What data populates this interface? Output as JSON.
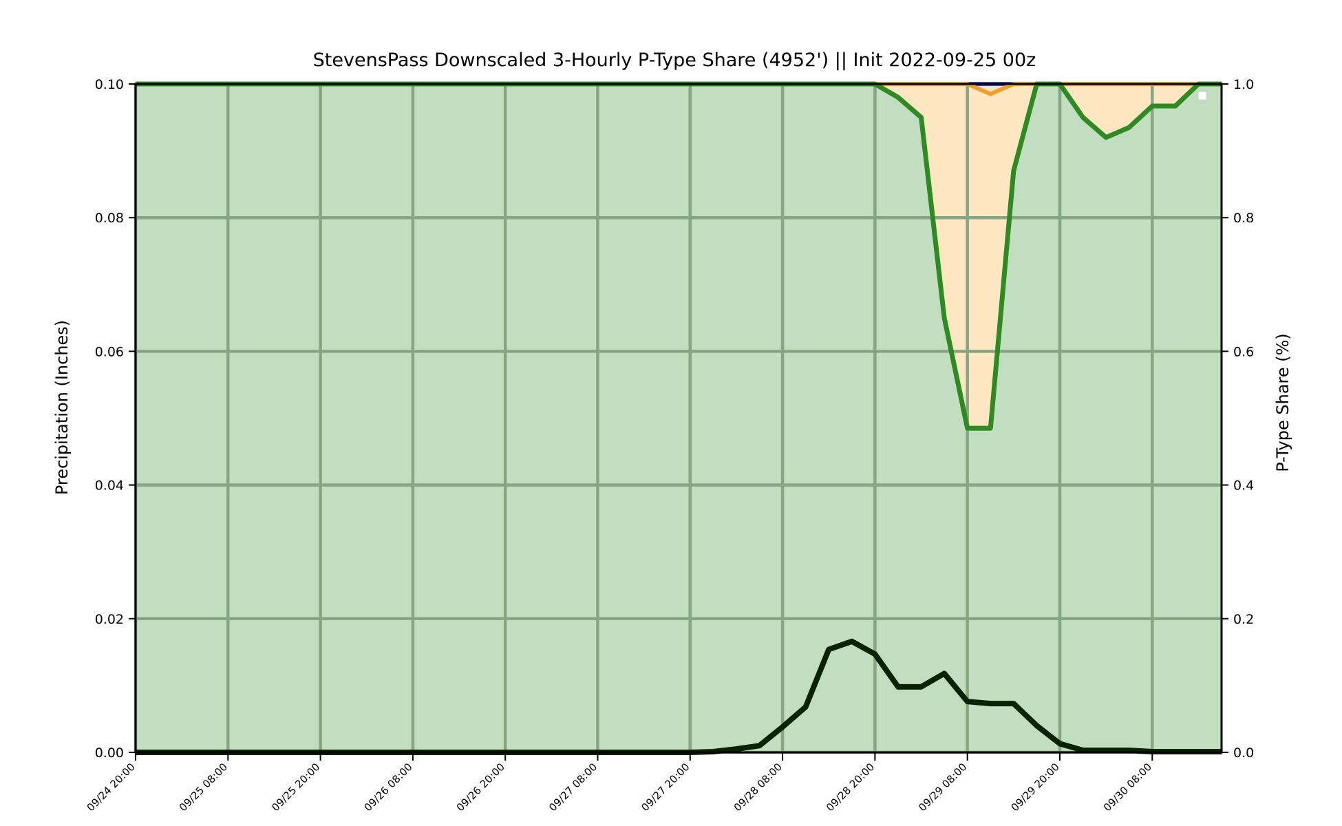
{
  "chart_data": {
    "type": "area",
    "title": "StevensPass Downscaled 3-Hourly P-Type Share (4952') || Init 2022-09-25 00z",
    "ylabel_left": "Precipitation (Inches)",
    "ylabel_right": "P-Type Share (%)",
    "xlabel": "",
    "ylim_left": [
      0,
      0.1
    ],
    "ylim_right": [
      0,
      1.0
    ],
    "grid": true,
    "x_tick_labels": [
      "09/24 20:00",
      "09/25 08:00",
      "09/25 20:00",
      "09/26 08:00",
      "09/26 20:00",
      "09/27 08:00",
      "09/27 20:00",
      "09/28 08:00",
      "09/28 20:00",
      "09/29 08:00",
      "09/29 20:00",
      "09/30 08:00"
    ],
    "y_left_ticks": [
      "0.00",
      "0.02",
      "0.04",
      "0.06",
      "0.08",
      "0.10"
    ],
    "y_right_ticks": [
      "0.0",
      "0.2",
      "0.4",
      "0.6",
      "0.8",
      "1.0"
    ],
    "x_hours_from_start": [
      0,
      3,
      6,
      9,
      12,
      15,
      18,
      21,
      24,
      27,
      30,
      33,
      36,
      39,
      42,
      45,
      48,
      51,
      54,
      57,
      60,
      63,
      66,
      69,
      72,
      75,
      78,
      81,
      84,
      87,
      90,
      93,
      96,
      99,
      102,
      105,
      108,
      111,
      114,
      117,
      120,
      123,
      126,
      129,
      132,
      135,
      138,
      141
    ],
    "series": [
      {
        "kind": "snow_share",
        "color": "#2e8b22",
        "fill": "#c1dfc0",
        "axis": "right",
        "values": [
          1,
          1,
          1,
          1,
          1,
          1,
          1,
          1,
          1,
          1,
          1,
          1,
          1,
          1,
          1,
          1,
          1,
          1,
          1,
          1,
          1,
          1,
          1,
          1,
          1,
          1,
          1,
          1,
          1,
          1,
          1,
          1,
          1,
          0.98,
          0.95,
          0.65,
          0.485,
          0.485,
          0.87,
          1,
          1,
          0.95,
          0.92,
          0.935,
          0.967,
          0.967,
          1,
          1
        ]
      },
      {
        "kind": "mixed_share",
        "color": "#f0a02a",
        "fill": "#fde7c2",
        "axis": "right",
        "values": [
          1,
          1,
          1,
          1,
          1,
          1,
          1,
          1,
          1,
          1,
          1,
          1,
          1,
          1,
          1,
          1,
          1,
          1,
          1,
          1,
          1,
          1,
          1,
          1,
          1,
          1,
          1,
          1,
          1,
          1,
          1,
          1,
          1,
          1,
          1,
          1,
          1,
          0.985,
          1,
          1,
          1,
          1,
          1,
          1,
          1,
          1,
          1,
          1
        ]
      },
      {
        "kind": "rain_share",
        "color": "#3344ee",
        "axis": "right",
        "values": [
          1,
          1,
          1,
          1,
          1,
          1,
          1,
          1,
          1,
          1,
          1,
          1,
          1,
          1,
          1,
          1,
          1,
          1,
          1,
          1,
          1,
          1,
          1,
          1,
          1,
          1,
          1,
          1,
          1,
          1,
          1,
          1,
          1,
          1,
          1,
          1,
          1,
          1,
          1,
          1,
          1,
          1,
          1,
          1,
          1,
          1,
          1,
          1
        ]
      },
      {
        "kind": "precipitation",
        "color": "#0a2200",
        "axis": "left",
        "values": [
          0,
          0,
          0,
          0,
          0,
          0,
          0,
          0,
          0,
          0,
          0,
          0,
          0,
          0,
          0,
          0,
          0,
          0,
          0,
          0,
          0,
          0,
          0,
          0,
          0,
          0.0001,
          0.0005,
          0.001,
          0.0038,
          0.0068,
          0.0154,
          0.0166,
          0.0147,
          0.0098,
          0.0098,
          0.0118,
          0.0076,
          0.0073,
          0.0073,
          0.004,
          0.0013,
          0.0003,
          0.0003,
          0.0003,
          0.0001,
          0.0001,
          0.0001,
          0.0001
        ]
      }
    ],
    "legend": "top-right"
  }
}
